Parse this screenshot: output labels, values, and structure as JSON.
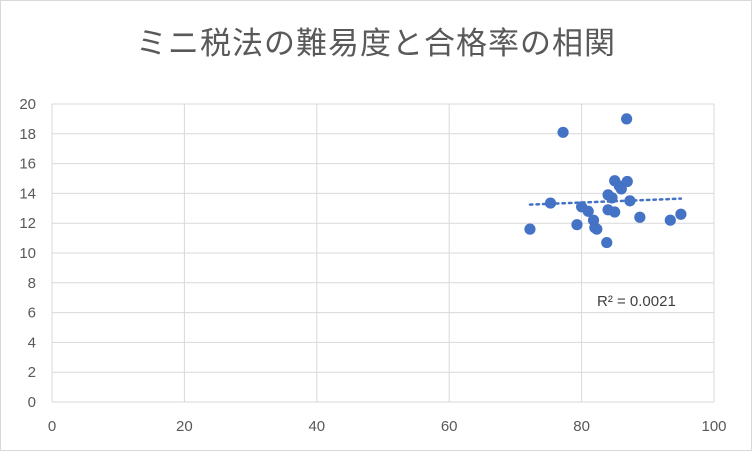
{
  "chart_data": {
    "type": "scatter",
    "title": "ミニ税法の難易度と合格率の相関",
    "xlim": [
      0,
      100
    ],
    "ylim": [
      0,
      20
    ],
    "x_ticks": [
      "0",
      "20",
      "40",
      "60",
      "80",
      "100"
    ],
    "y_ticks": [
      "0",
      "2",
      "4",
      "6",
      "8",
      "10",
      "12",
      "14",
      "16",
      "18",
      "20"
    ],
    "grid": true,
    "legend": "none",
    "marker_color": "#4472C4",
    "trendline": {
      "type": "linear",
      "style": "dotted",
      "x_start": 72.2,
      "y_start": 13.25,
      "x_end": 95.0,
      "y_end": 13.65,
      "label": "R² = 0.0021"
    },
    "points": [
      {
        "x": 72.2,
        "y": 11.6
      },
      {
        "x": 75.3,
        "y": 13.35
      },
      {
        "x": 77.2,
        "y": 18.1
      },
      {
        "x": 79.3,
        "y": 11.9
      },
      {
        "x": 80.0,
        "y": 13.1
      },
      {
        "x": 81.0,
        "y": 12.8
      },
      {
        "x": 81.8,
        "y": 12.2
      },
      {
        "x": 82.0,
        "y": 11.7
      },
      {
        "x": 82.3,
        "y": 11.6
      },
      {
        "x": 83.8,
        "y": 10.7
      },
      {
        "x": 84.0,
        "y": 13.9
      },
      {
        "x": 84.0,
        "y": 12.9
      },
      {
        "x": 84.6,
        "y": 13.7
      },
      {
        "x": 85.0,
        "y": 14.85
      },
      {
        "x": 85.0,
        "y": 12.75
      },
      {
        "x": 85.7,
        "y": 14.5
      },
      {
        "x": 86.0,
        "y": 14.3
      },
      {
        "x": 86.8,
        "y": 19.0
      },
      {
        "x": 86.9,
        "y": 14.8
      },
      {
        "x": 87.3,
        "y": 13.5
      },
      {
        "x": 88.8,
        "y": 12.4
      },
      {
        "x": 93.4,
        "y": 12.2
      },
      {
        "x": 95.0,
        "y": 12.6
      }
    ]
  }
}
